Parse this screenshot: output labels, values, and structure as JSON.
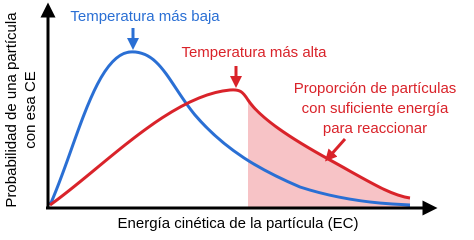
{
  "labels": {
    "low_temp": "Temperatura más baja",
    "high_temp": "Temperatura más alta",
    "proportion": [
      "Proporción de partículas",
      "con suficiente energía",
      "para reaccionar"
    ],
    "y_axis": [
      "Probabilidad de una partícula",
      "con esa CE"
    ],
    "x_axis": "Energía cinética de la partícula (EC)"
  }
}
